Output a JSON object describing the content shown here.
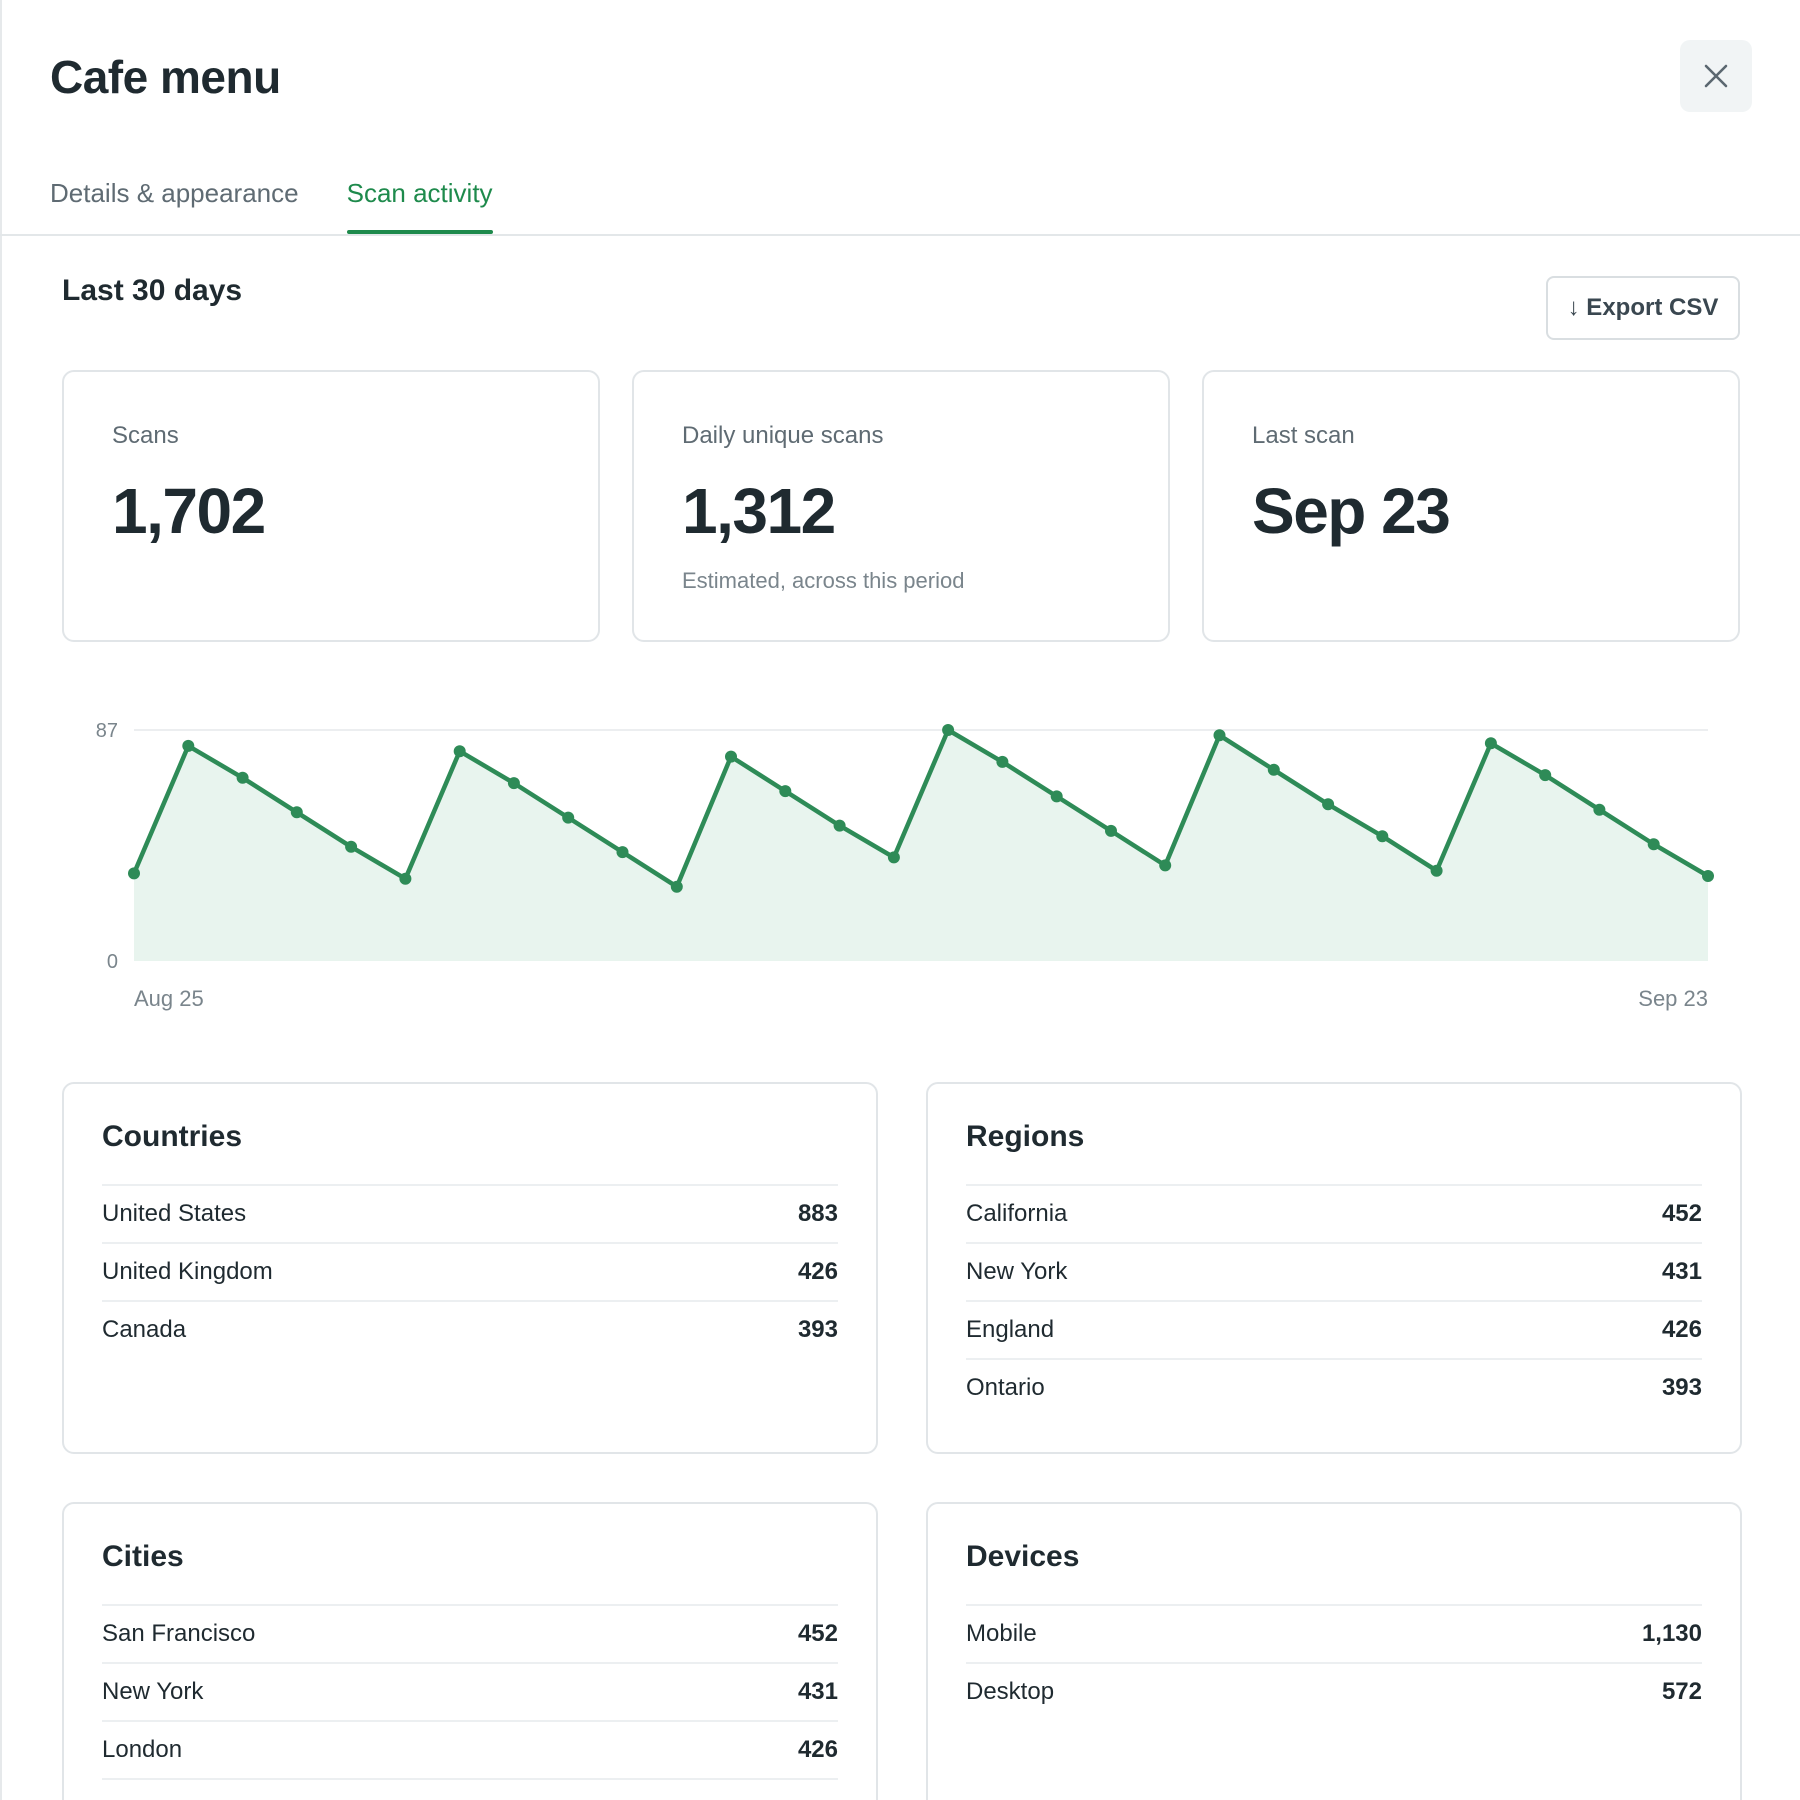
{
  "modal": {
    "title": "Cafe menu",
    "close_icon": "close-icon"
  },
  "tabs": [
    {
      "label": "Details & appearance",
      "active": false
    },
    {
      "label": "Scan activity",
      "active": true
    }
  ],
  "period": {
    "title": "Last 30 days",
    "export_label": "↓ Export CSV"
  },
  "stats": [
    {
      "label": "Scans",
      "value": "1,702",
      "note": ""
    },
    {
      "label": "Daily unique scans",
      "value": "1,312",
      "note": "Estimated, across this period"
    },
    {
      "label": "Last scan",
      "value": "Sep 23",
      "note": ""
    }
  ],
  "chart_data": {
    "type": "area",
    "title": "",
    "xlabel": "",
    "ylabel": "",
    "x_start_label": "Aug 25",
    "x_end_label": "Sep 23",
    "y_tick_labels": [
      "0",
      "87"
    ],
    "ylim": [
      0,
      87
    ],
    "grid": true,
    "color": "#2e8b57",
    "fill": "#e8f4ee",
    "x": [
      "Aug 25",
      "Aug 26",
      "Aug 27",
      "Aug 28",
      "Aug 29",
      "Aug 30",
      "Aug 31",
      "Sep 1",
      "Sep 2",
      "Sep 3",
      "Sep 4",
      "Sep 5",
      "Sep 6",
      "Sep 7",
      "Sep 8",
      "Sep 9",
      "Sep 10",
      "Sep 11",
      "Sep 12",
      "Sep 13",
      "Sep 14",
      "Sep 15",
      "Sep 16",
      "Sep 17",
      "Sep 18",
      "Sep 19",
      "Sep 20",
      "Sep 21",
      "Sep 22",
      "Sep 23"
    ],
    "values": [
      33,
      81,
      69,
      56,
      43,
      31,
      79,
      67,
      54,
      41,
      28,
      77,
      64,
      51,
      39,
      87,
      75,
      62,
      49,
      36,
      85,
      72,
      59,
      47,
      34,
      82,
      70,
      57,
      44,
      32
    ]
  },
  "cards": {
    "countries": {
      "title": "Countries",
      "rows": [
        {
          "name": "United States",
          "count": "883"
        },
        {
          "name": "United Kingdom",
          "count": "426"
        },
        {
          "name": "Canada",
          "count": "393"
        }
      ]
    },
    "regions": {
      "title": "Regions",
      "rows": [
        {
          "name": "California",
          "count": "452"
        },
        {
          "name": "New York",
          "count": "431"
        },
        {
          "name": "England",
          "count": "426"
        },
        {
          "name": "Ontario",
          "count": "393"
        }
      ]
    },
    "cities": {
      "title": "Cities",
      "rows": [
        {
          "name": "San Francisco",
          "count": "452"
        },
        {
          "name": "New York",
          "count": "431"
        },
        {
          "name": "London",
          "count": "426"
        }
      ]
    },
    "devices": {
      "title": "Devices",
      "rows": [
        {
          "name": "Mobile",
          "count": "1,130"
        },
        {
          "name": "Desktop",
          "count": "572"
        }
      ]
    }
  }
}
